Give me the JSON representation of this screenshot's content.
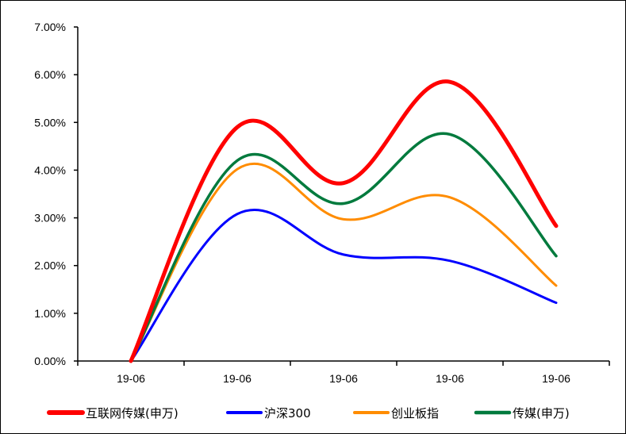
{
  "chart_data": {
    "type": "line",
    "title": "",
    "xlabel": "",
    "ylabel": "",
    "categories": [
      "19-06",
      "19-06",
      "19-06",
      "19-06",
      "19-06"
    ],
    "ylim": [
      0,
      7
    ],
    "yticks": [
      0,
      1,
      2,
      3,
      4,
      5,
      6,
      7
    ],
    "ytick_labels": [
      "0.00%",
      "1.00%",
      "2.00%",
      "3.00%",
      "4.00%",
      "5.00%",
      "6.00%",
      "7.00%"
    ],
    "grid": false,
    "legend_position": "bottom",
    "series": [
      {
        "name": "互联网传媒(申万)",
        "color": "#ff0000",
        "values": [
          0,
          4.9,
          3.73,
          5.85,
          2.83
        ]
      },
      {
        "name": "沪深300",
        "color": "#0000ff",
        "values": [
          0,
          3.08,
          2.23,
          2.1,
          1.22
        ]
      },
      {
        "name": "创业板指",
        "color": "#ff8c00",
        "values": [
          0,
          4.02,
          2.97,
          3.43,
          1.58
        ]
      },
      {
        "name": "传媒(申万)",
        "color": "#007a3d",
        "values": [
          0,
          4.2,
          3.3,
          4.75,
          2.2
        ]
      }
    ]
  }
}
